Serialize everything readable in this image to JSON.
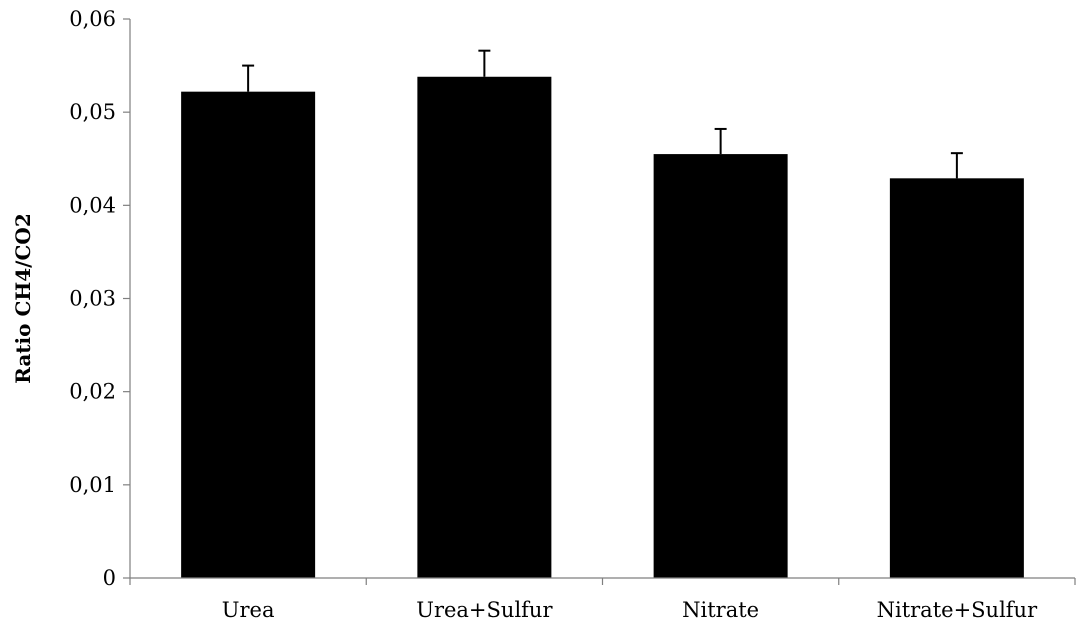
{
  "chart_data": {
    "type": "bar",
    "title": "",
    "xlabel": "",
    "ylabel": "Ratio CH4/CO2",
    "categories": [
      "Urea",
      "Urea+Sulfur",
      "Nitrate",
      "Nitrate+Sulfur"
    ],
    "series": [
      {
        "values": [
          0.0522,
          0.0538,
          0.0455,
          0.0429
        ],
        "error": [
          0.0028,
          0.0028,
          0.0027,
          0.0027
        ],
        "color": "#000000"
      }
    ],
    "ylim": [
      0,
      0.06
    ],
    "yticks": [
      "0",
      "0,01",
      "0,02",
      "0,03",
      "0,04",
      "0,05",
      "0,06"
    ],
    "grid": false,
    "legend": "none"
  }
}
